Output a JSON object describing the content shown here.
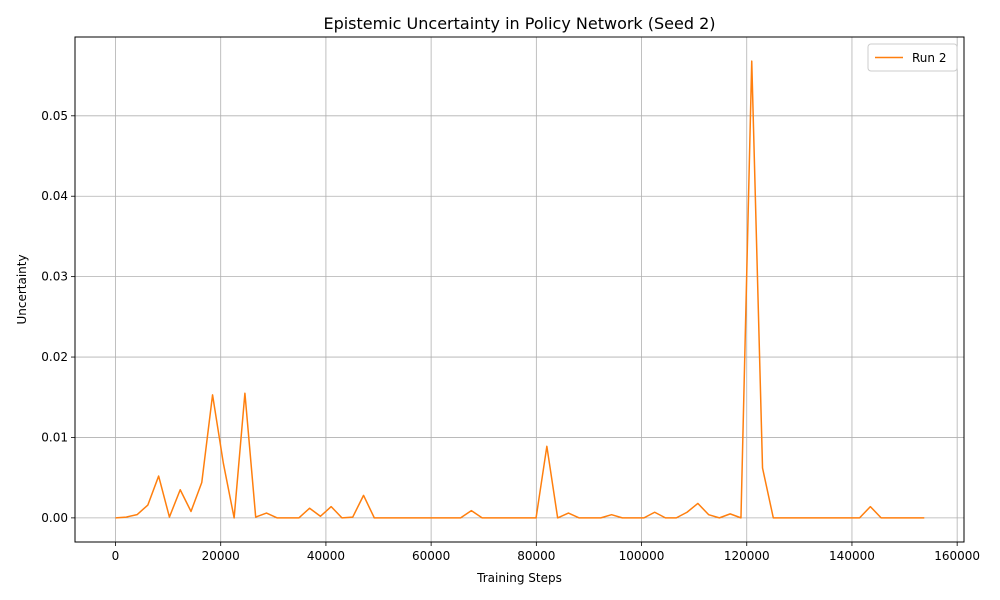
{
  "chart_data": {
    "type": "line",
    "title": "Epistemic Uncertainty in Policy Network (Seed 2)",
    "xlabel": "Training Steps",
    "ylabel": "Uncertainty",
    "xlim": [
      -7700,
      161300
    ],
    "ylim": [
      -0.003,
      0.0598
    ],
    "xticks": [
      0,
      20000,
      40000,
      60000,
      80000,
      100000,
      120000,
      140000,
      160000
    ],
    "yticks": [
      0.0,
      0.01,
      0.02,
      0.03,
      0.04,
      0.05
    ],
    "ytick_labels": [
      "0.00",
      "0.01",
      "0.02",
      "0.03",
      "0.04",
      "0.05"
    ],
    "grid": true,
    "legend_position": "top-right",
    "series": [
      {
        "name": "Run 2",
        "color": "#ff7f0e",
        "x": [
          0,
          2050,
          4100,
          6150,
          8200,
          10250,
          12300,
          14350,
          16400,
          18450,
          20500,
          22550,
          24600,
          26650,
          28700,
          30750,
          32800,
          34850,
          36900,
          38950,
          41000,
          43050,
          45100,
          47150,
          49200,
          51250,
          53300,
          55350,
          57400,
          59450,
          61500,
          63550,
          65600,
          67650,
          69700,
          71750,
          73800,
          75850,
          77900,
          79950,
          82000,
          84050,
          86100,
          88150,
          90200,
          92250,
          94300,
          96350,
          98400,
          100450,
          102500,
          104550,
          106600,
          108650,
          110700,
          112750,
          114800,
          116850,
          118900,
          120950,
          123000,
          125050,
          127100,
          129150,
          131200,
          133250,
          135300,
          137350,
          139400,
          141450,
          143500,
          145550,
          147600,
          149650,
          151700,
          153750
        ],
        "y": [
          0.0,
          0.0001,
          0.0004,
          0.0016,
          0.0052,
          0.0001,
          0.0035,
          0.0008,
          0.0044,
          0.0153,
          0.0068,
          0.0,
          0.0155,
          0.0001,
          0.0006,
          0.0,
          0.0,
          0.0,
          0.0012,
          0.0002,
          0.0014,
          0.0,
          0.0001,
          0.0028,
          0.0,
          0.0,
          0.0,
          0.0,
          0.0,
          0.0,
          0.0,
          0.0,
          0.0,
          0.0009,
          0.0,
          0.0,
          0.0,
          0.0,
          0.0,
          0.0,
          0.0089,
          0.0,
          0.0006,
          0.0,
          0.0,
          0.0,
          0.0004,
          0.0,
          0.0,
          0.0,
          0.0007,
          0.0,
          0.0,
          0.0007,
          0.0018,
          0.0004,
          0.0,
          0.0005,
          0.0,
          0.0568,
          0.0062,
          0.0,
          0.0,
          0.0,
          0.0,
          0.0,
          0.0,
          0.0,
          0.0,
          0.0,
          0.0014,
          0.0,
          0.0,
          0.0,
          0.0,
          0.0
        ]
      }
    ]
  }
}
